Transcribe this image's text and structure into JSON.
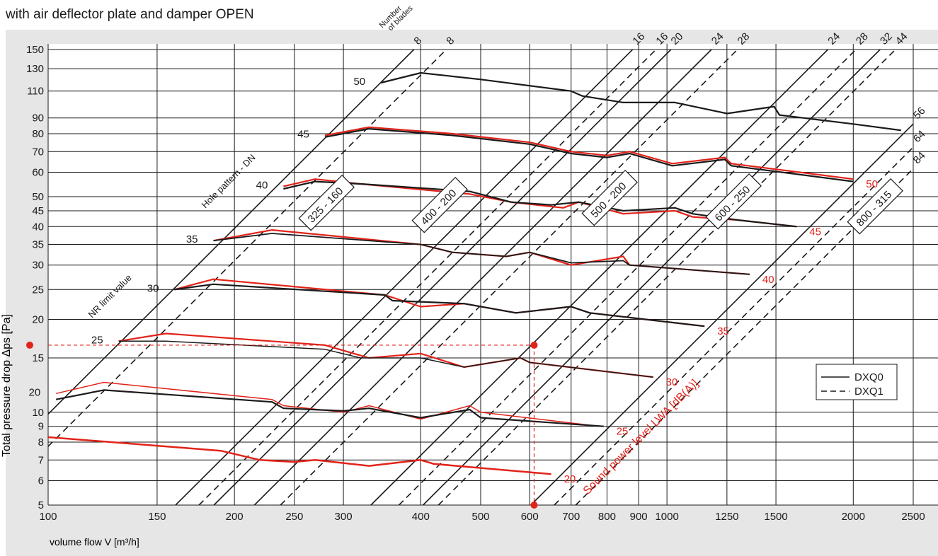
{
  "chart_data": {
    "type": "line",
    "title": "with air deflector plate and damper OPEN",
    "xlabel": "volume flow V [m³/h]",
    "ylabel": "Total pressure drop Δps [Pa]",
    "x_scale": "log",
    "y_scale": "log",
    "xlim": [
      100,
      2500
    ],
    "ylim": [
      5,
      150
    ],
    "x_ticks": [
      100,
      150,
      200,
      250,
      300,
      400,
      500,
      600,
      700,
      800,
      900,
      1000,
      1250,
      1500,
      2000,
      2500
    ],
    "y_ticks": [
      5,
      6,
      7,
      8,
      9,
      10,
      15,
      20,
      25,
      30,
      35,
      40,
      45,
      50,
      60,
      70,
      80,
      90,
      110,
      130,
      150
    ],
    "grid": true,
    "legend_position": "bottom-right",
    "legend": [
      {
        "label": "DXQ0",
        "style": "solid"
      },
      {
        "label": "DXQ1",
        "style": "dashed"
      }
    ],
    "blades_label": "Number\nof blades",
    "blade_lines_solid": [
      {
        "label": "8",
        "x_at_150": 390
      },
      {
        "label": "16",
        "x_at_150": 880
      },
      {
        "label": "20",
        "x_at_150": 1015
      },
      {
        "label": "24",
        "x_at_150": 1180
      },
      {
        "label": "24",
        "x_at_150": 1820
      },
      {
        "label": "32",
        "x_at_150": 2210
      },
      {
        "label": "56",
        "x_at_150": 3300
      }
    ],
    "blade_lines_dashed": [
      {
        "label": "8",
        "x_at_150": 440
      },
      {
        "label": "16",
        "x_at_150": 960
      },
      {
        "label": "28",
        "x_at_150": 1300
      },
      {
        "label": "28",
        "x_at_150": 2020
      },
      {
        "label": "44",
        "x_at_150": 2340
      },
      {
        "label": "64",
        "x_at_150": 3600
      },
      {
        "label": "84",
        "x_at_150": 3900
      }
    ],
    "nr_label": "NR limit value",
    "nr_lines": [
      {
        "label": "50",
        "x_at_150": 390
      }
    ],
    "hole_pattern_label": "Hole pattern - DN",
    "hole_patterns": [
      "325 - 160",
      "400 - 200",
      "500 - 200",
      "600 - 250",
      "800 - 315"
    ],
    "sound_label": "Sound power level LWA [dB(A)]",
    "nr_curve_labels": [
      "50",
      "45",
      "40",
      "35",
      "30",
      "25",
      "20"
    ],
    "lwa_labels": [
      "50",
      "45",
      "40",
      "35",
      "30",
      "25",
      "20"
    ],
    "series": [
      {
        "name": "NR 50 black",
        "color": "#1a1a1a",
        "width": 2.2,
        "points": [
          [
            345,
            117
          ],
          [
            400,
            126
          ],
          [
            500,
            120
          ],
          [
            700,
            110
          ],
          [
            730,
            106
          ],
          [
            850,
            101
          ],
          [
            1030,
            101
          ],
          [
            1250,
            93
          ],
          [
            1490,
            98
          ],
          [
            1520,
            92
          ],
          [
            2000,
            86
          ],
          [
            2390,
            82
          ]
        ]
      },
      {
        "name": "NR 45 red",
        "color": "#e2231a",
        "width": 2.2,
        "points": [
          [
            280,
            79
          ],
          [
            330,
            84
          ],
          [
            450,
            80
          ],
          [
            600,
            75
          ],
          [
            700,
            70
          ],
          [
            800,
            68
          ],
          [
            870,
            70
          ],
          [
            1020,
            64
          ],
          [
            1240,
            67
          ],
          [
            1270,
            64
          ],
          [
            2000,
            57
          ]
        ]
      },
      {
        "name": "NR 45 black",
        "color": "#1a1a1a",
        "width": 2.2,
        "points": [
          [
            280,
            78
          ],
          [
            330,
            83
          ],
          [
            450,
            79
          ],
          [
            600,
            74
          ],
          [
            700,
            69
          ],
          [
            800,
            67
          ],
          [
            870,
            69
          ],
          [
            1020,
            63
          ],
          [
            1240,
            66
          ],
          [
            1270,
            63
          ],
          [
            2000,
            56
          ]
        ]
      },
      {
        "name": "NR 40 red",
        "color": "#e2231a",
        "width": 2.2,
        "points": [
          [
            240,
            54
          ],
          [
            270,
            57
          ],
          [
            320,
            55
          ],
          [
            480,
            51
          ],
          [
            560,
            48
          ],
          [
            680,
            46
          ],
          [
            720,
            48
          ],
          [
            850,
            44
          ],
          [
            1030,
            45
          ],
          [
            1100,
            43
          ],
          [
            1300,
            42
          ],
          [
            1620,
            40
          ]
        ]
      },
      {
        "name": "NR 40 black",
        "color": "#1a1a1a",
        "width": 2.2,
        "points": [
          [
            240,
            53
          ],
          [
            270,
            56
          ],
          [
            320,
            55
          ],
          [
            480,
            52
          ],
          [
            560,
            48
          ],
          [
            650,
            47
          ],
          [
            720,
            48
          ],
          [
            850,
            45
          ],
          [
            1030,
            46
          ],
          [
            1100,
            44
          ],
          [
            1300,
            42
          ],
          [
            1620,
            40
          ]
        ]
      },
      {
        "name": "NR 35 red",
        "color": "#e2231a",
        "width": 2.2,
        "points": [
          [
            185,
            36
          ],
          [
            230,
            39
          ],
          [
            400,
            35
          ],
          [
            450,
            33
          ],
          [
            550,
            32
          ],
          [
            600,
            33
          ],
          [
            700,
            30
          ],
          [
            850,
            32
          ],
          [
            870,
            30
          ],
          [
            1360,
            28
          ]
        ]
      },
      {
        "name": "NR 35 black",
        "color": "#1a1a1a",
        "width": 1.8,
        "points": [
          [
            185,
            36
          ],
          [
            230,
            38
          ],
          [
            400,
            35
          ],
          [
            450,
            33
          ],
          [
            550,
            32
          ],
          [
            600,
            33
          ],
          [
            700,
            30.5
          ],
          [
            850,
            31
          ],
          [
            870,
            30
          ],
          [
            1360,
            28
          ]
        ]
      },
      {
        "name": "NR 30 red",
        "color": "#e2231a",
        "width": 2.2,
        "points": [
          [
            160,
            25
          ],
          [
            185,
            27
          ],
          [
            350,
            24
          ],
          [
            400,
            22
          ],
          [
            470,
            22.5
          ],
          [
            570,
            21
          ],
          [
            700,
            22
          ],
          [
            750,
            21
          ],
          [
            1150,
            19
          ]
        ]
      },
      {
        "name": "NR 30 black",
        "color": "#1a1a1a",
        "width": 2.2,
        "points": [
          [
            160,
            25
          ],
          [
            185,
            26
          ],
          [
            350,
            24
          ],
          [
            360,
            23
          ],
          [
            470,
            22.5
          ],
          [
            570,
            21
          ],
          [
            700,
            22
          ],
          [
            750,
            21
          ],
          [
            1150,
            19
          ]
        ]
      },
      {
        "name": "NR 25 red",
        "color": "#e2231a",
        "width": 2.2,
        "points": [
          [
            130,
            17
          ],
          [
            155,
            18
          ],
          [
            280,
            16.5
          ],
          [
            330,
            15
          ],
          [
            400,
            15.5
          ],
          [
            470,
            14
          ],
          [
            580,
            15
          ],
          [
            600,
            14.5
          ],
          [
            950,
            13
          ]
        ]
      },
      {
        "name": "NR 25 black",
        "color": "#1a1a1a",
        "width": 1.5,
        "points": [
          [
            130,
            17
          ],
          [
            155,
            17
          ],
          [
            280,
            16
          ],
          [
            320,
            15
          ],
          [
            400,
            15
          ],
          [
            470,
            14
          ],
          [
            580,
            15
          ],
          [
            600,
            14.5
          ],
          [
            950,
            13
          ]
        ]
      },
      {
        "name": "NR 20 red",
        "color": "#e2231a",
        "width": 1.5,
        "points": [
          [
            103,
            11.5
          ],
          [
            123,
            12.5
          ],
          [
            230,
            11
          ],
          [
            240,
            10.5
          ],
          [
            300,
            10
          ],
          [
            330,
            10.5
          ],
          [
            400,
            9.5
          ],
          [
            480,
            10.5
          ],
          [
            500,
            10
          ],
          [
            780,
            9
          ]
        ]
      },
      {
        "name": "NR 20 black",
        "color": "#1a1a1a",
        "width": 2.2,
        "points": [
          [
            103,
            11
          ],
          [
            123,
            11.8
          ],
          [
            230,
            10.8
          ],
          [
            240,
            10.3
          ],
          [
            300,
            10.1
          ],
          [
            330,
            10.3
          ],
          [
            400,
            9.6
          ],
          [
            480,
            10.2
          ],
          [
            500,
            9.6
          ],
          [
            790,
            9
          ]
        ]
      },
      {
        "name": "LWA 20 red",
        "color": "#e2231a",
        "width": 2.5,
        "points": [
          [
            100,
            8.3
          ],
          [
            190,
            7.5
          ],
          [
            220,
            7
          ],
          [
            250,
            6.9
          ],
          [
            270,
            7
          ],
          [
            330,
            6.7
          ],
          [
            400,
            7
          ],
          [
            420,
            6.8
          ],
          [
            650,
            6.3
          ]
        ]
      }
    ],
    "reading_point": {
      "x": 610,
      "y": 16.5
    }
  }
}
